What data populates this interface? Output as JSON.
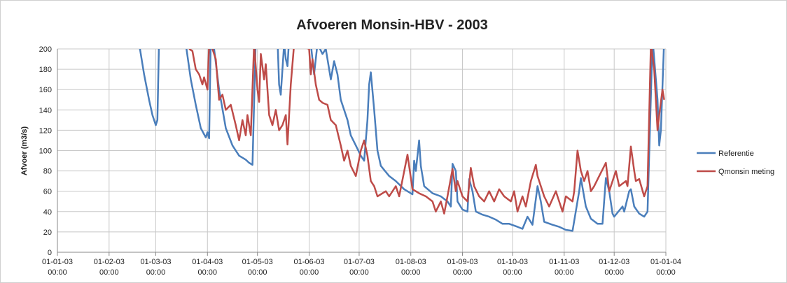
{
  "chart_data": {
    "type": "line",
    "title": "Afvoeren Monsin-HBV - 2003",
    "ylabel": "Afvoer (m3/s)",
    "ylim": [
      0,
      200
    ],
    "yticks": [
      0,
      20,
      40,
      60,
      80,
      100,
      120,
      140,
      160,
      180,
      200
    ],
    "xlim": [
      "2003-01-01",
      "2004-01-01"
    ],
    "xticks": [
      {
        "value": "2003-01-01",
        "label": [
          "01-01-03",
          "00:00"
        ]
      },
      {
        "value": "2003-02-01",
        "label": [
          "01-02-03",
          "00:00"
        ]
      },
      {
        "value": "2003-03-01",
        "label": [
          "01-03-03",
          "00:00"
        ]
      },
      {
        "value": "2003-04-01",
        "label": [
          "01-04-03",
          "00:00"
        ]
      },
      {
        "value": "2003-05-01",
        "label": [
          "01-05-03",
          "00:00"
        ]
      },
      {
        "value": "2003-06-01",
        "label": [
          "01-06-03",
          "00:00"
        ]
      },
      {
        "value": "2003-07-01",
        "label": [
          "01-07-03",
          "00:00"
        ]
      },
      {
        "value": "2003-08-01",
        "label": [
          "01-08-03",
          "00:00"
        ]
      },
      {
        "value": "2003-09-01",
        "label": [
          "01-09-03",
          "00:00"
        ]
      },
      {
        "value": "2003-10-01",
        "label": [
          "01-10-03",
          "00:00"
        ]
      },
      {
        "value": "2003-11-01",
        "label": [
          "01-11-03",
          "00:00"
        ]
      },
      {
        "value": "2003-12-01",
        "label": [
          "01-12-03",
          "00:00"
        ]
      },
      {
        "value": "2004-01-01",
        "label": [
          "01-01-04",
          "00:00"
        ]
      }
    ],
    "grid": true,
    "legend": "right",
    "series": [
      {
        "name": "Referentie",
        "color": "#4a7ebb",
        "x": [
          "2003-02-19",
          "2003-02-22",
          "2003-02-25",
          "2003-02-27",
          "2003-03-01",
          "2003-03-02",
          "2003-03-03",
          "2003-03-19",
          "2003-03-22",
          "2003-03-25",
          "2003-03-28",
          "2003-03-31",
          "2003-04-01",
          "2003-04-02",
          "2003-04-03",
          "2003-04-05",
          "2003-04-08",
          "2003-04-12",
          "2003-04-16",
          "2003-04-20",
          "2003-04-24",
          "2003-04-26",
          "2003-04-28",
          "2003-04-30",
          "2003-05-13",
          "2003-05-14",
          "2003-05-15",
          "2003-05-17",
          "2003-05-18",
          "2003-05-19",
          "2003-05-20",
          "2003-06-02",
          "2003-06-04",
          "2003-06-06",
          "2003-06-09",
          "2003-06-11",
          "2003-06-14",
          "2003-06-16",
          "2003-06-18",
          "2003-06-20",
          "2003-06-22",
          "2003-06-24",
          "2003-06-26",
          "2003-06-29",
          "2003-07-02",
          "2003-07-04",
          "2003-07-06",
          "2003-07-07",
          "2003-07-08",
          "2003-07-10",
          "2003-07-12",
          "2003-07-14",
          "2003-07-19",
          "2003-07-23",
          "2003-07-28",
          "2003-08-02",
          "2003-08-03",
          "2003-08-04",
          "2003-08-06",
          "2003-08-07",
          "2003-08-09",
          "2003-08-14",
          "2003-08-19",
          "2003-08-23",
          "2003-08-25",
          "2003-08-26",
          "2003-08-28",
          "2003-08-29",
          "2003-09-01",
          "2003-09-04",
          "2003-09-05",
          "2003-09-07",
          "2003-09-09",
          "2003-09-13",
          "2003-09-17",
          "2003-09-21",
          "2003-09-25",
          "2003-09-29",
          "2003-10-04",
          "2003-10-07",
          "2003-10-10",
          "2003-10-13",
          "2003-10-16",
          "2003-10-18",
          "2003-10-20",
          "2003-10-25",
          "2003-10-29",
          "2003-11-02",
          "2003-11-06",
          "2003-11-10",
          "2003-11-11",
          "2003-11-14",
          "2003-11-17",
          "2003-11-21",
          "2003-11-24",
          "2003-11-26",
          "2003-11-28",
          "2003-11-30",
          "2003-12-01",
          "2003-12-06",
          "2003-12-07",
          "2003-12-10",
          "2003-12-11",
          "2003-12-13",
          "2003-12-16",
          "2003-12-19",
          "2003-12-21",
          "2003-12-24",
          "2003-12-27",
          "2003-12-28",
          "2003-12-29",
          "2003-12-31"
        ],
        "values": [
          205,
          175,
          150,
          135,
          125,
          130,
          210,
          205,
          170,
          145,
          122,
          113,
          118,
          112,
          210,
          200,
          160,
          122,
          105,
          95,
          91,
          88,
          86,
          210,
          210,
          165,
          155,
          205,
          190,
          183,
          210,
          205,
          175,
          205,
          195,
          200,
          170,
          188,
          175,
          150,
          140,
          130,
          115,
          105,
          95,
          90,
          130,
          165,
          177,
          140,
          100,
          85,
          75,
          70,
          62,
          57,
          90,
          80,
          110,
          85,
          65,
          58,
          55,
          50,
          45,
          87,
          80,
          50,
          42,
          40,
          72,
          60,
          40,
          37,
          35,
          32,
          28,
          28,
          25,
          23,
          35,
          27,
          65,
          50,
          30,
          27,
          25,
          22,
          21,
          60,
          73,
          45,
          33,
          28,
          28,
          73,
          60,
          38,
          35,
          45,
          40,
          60,
          62,
          45,
          38,
          35,
          40,
          210,
          150,
          105,
          120,
          210
        ]
      },
      {
        "name": "Qmonsin meting",
        "color": "#be4b48",
        "x": [
          "2003-03-21",
          "2003-03-23",
          "2003-03-25",
          "2003-03-27",
          "2003-03-29",
          "2003-03-30",
          "2003-04-01",
          "2003-04-02",
          "2003-04-04",
          "2003-04-06",
          "2003-04-08",
          "2003-04-10",
          "2003-04-12",
          "2003-04-15",
          "2003-04-18",
          "2003-04-20",
          "2003-04-22",
          "2003-04-24",
          "2003-04-25",
          "2003-04-27",
          "2003-04-29",
          "2003-05-01",
          "2003-05-02",
          "2003-05-03",
          "2003-05-05",
          "2003-05-06",
          "2003-05-08",
          "2003-05-10",
          "2003-05-12",
          "2003-05-14",
          "2003-05-16",
          "2003-05-18",
          "2003-05-19",
          "2003-05-21",
          "2003-05-23",
          "2003-06-01",
          "2003-06-02",
          "2003-06-03",
          "2003-06-05",
          "2003-06-07",
          "2003-06-09",
          "2003-06-12",
          "2003-06-14",
          "2003-06-17",
          "2003-06-20",
          "2003-06-22",
          "2003-06-24",
          "2003-06-26",
          "2003-06-29",
          "2003-07-02",
          "2003-07-04",
          "2003-07-06",
          "2003-07-08",
          "2003-07-10",
          "2003-07-12",
          "2003-07-17",
          "2003-07-19",
          "2003-07-23",
          "2003-07-25",
          "2003-07-30",
          "2003-08-02",
          "2003-08-06",
          "2003-08-10",
          "2003-08-14",
          "2003-08-16",
          "2003-08-19",
          "2003-08-21",
          "2003-08-23",
          "2003-08-26",
          "2003-08-28",
          "2003-08-29",
          "2003-09-01",
          "2003-09-04",
          "2003-09-06",
          "2003-09-08",
          "2003-09-11",
          "2003-09-14",
          "2003-09-17",
          "2003-09-20",
          "2003-09-23",
          "2003-09-26",
          "2003-09-30",
          "2003-10-02",
          "2003-10-04",
          "2003-10-07",
          "2003-10-09",
          "2003-10-12",
          "2003-10-15",
          "2003-10-16",
          "2003-10-20",
          "2003-10-23",
          "2003-10-27",
          "2003-10-29",
          "2003-10-31",
          "2003-11-02",
          "2003-11-06",
          "2003-11-07",
          "2003-11-09",
          "2003-11-11",
          "2003-11-13",
          "2003-11-15",
          "2003-11-17",
          "2003-11-19",
          "2003-11-22",
          "2003-11-26",
          "2003-11-28",
          "2003-12-02",
          "2003-12-04",
          "2003-12-08",
          "2003-12-09",
          "2003-12-11",
          "2003-12-13",
          "2003-12-14",
          "2003-12-16",
          "2003-12-19",
          "2003-12-21",
          "2003-12-23",
          "2003-12-25",
          "2003-12-27",
          "2003-12-28",
          "2003-12-30",
          "2003-12-31"
        ],
        "values": [
          200,
          198,
          180,
          175,
          165,
          172,
          160,
          205,
          200,
          190,
          150,
          155,
          140,
          145,
          125,
          110,
          130,
          115,
          135,
          115,
          205,
          160,
          148,
          195,
          170,
          185,
          135,
          125,
          140,
          120,
          125,
          135,
          106,
          165,
          205,
          200,
          175,
          190,
          165,
          150,
          147,
          145,
          130,
          125,
          105,
          90,
          100,
          85,
          75,
          100,
          110,
          95,
          70,
          65,
          55,
          60,
          55,
          65,
          55,
          96,
          62,
          58,
          55,
          50,
          40,
          50,
          38,
          55,
          82,
          60,
          70,
          55,
          50,
          83,
          65,
          55,
          50,
          60,
          50,
          62,
          55,
          50,
          60,
          40,
          55,
          45,
          70,
          86,
          75,
          55,
          45,
          60,
          50,
          40,
          55,
          50,
          60,
          100,
          80,
          70,
          80,
          60,
          65,
          75,
          88,
          60,
          80,
          65,
          70,
          65,
          104,
          80,
          70,
          72,
          55,
          65,
          205,
          180,
          120,
          135,
          160,
          150
        ]
      }
    ]
  }
}
